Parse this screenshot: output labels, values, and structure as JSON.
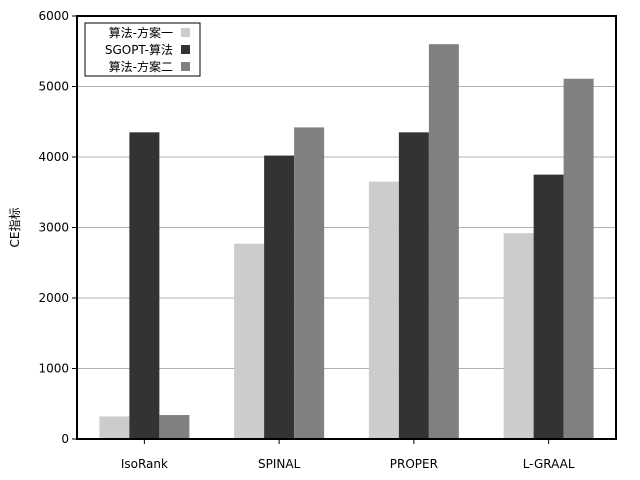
{
  "chart_data": {
    "type": "bar",
    "categories": [
      "IsoRank",
      "SPINAL",
      "PROPER",
      "L-GRAAL"
    ],
    "series": [
      {
        "name": "算法-方案一",
        "color": "#cccccc",
        "values": [
          320,
          2770,
          3650,
          2920
        ]
      },
      {
        "name": "SGOPT-算法",
        "color": "#333333",
        "values": [
          4350,
          4020,
          4350,
          3750
        ]
      },
      {
        "name": "算法-方案二",
        "color": "#808080",
        "values": [
          340,
          4420,
          5600,
          5110
        ]
      }
    ],
    "ylabel": "CE指标",
    "xlabel": "",
    "ylim": [
      0,
      6000
    ],
    "yticks": [
      0,
      1000,
      2000,
      3000,
      4000,
      5000,
      6000
    ],
    "grid": "horizontal",
    "legend_position": "top-left"
  }
}
